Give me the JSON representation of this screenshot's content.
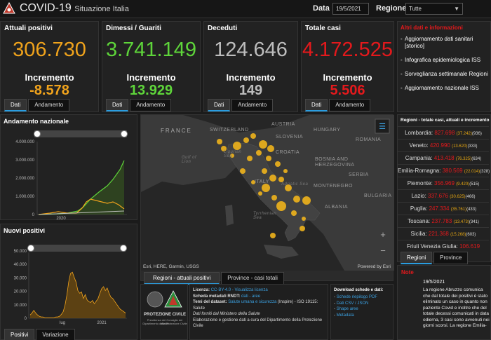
{
  "header": {
    "title": "COVID-19",
    "subtitle": "Situazione Italia",
    "date_label": "Data",
    "date_value": "19/5/2021",
    "region_label": "Regione",
    "region_value": "Tutte"
  },
  "stats": [
    {
      "title": "Attuali positivi",
      "value": "306.730",
      "inc_label": "Incremento",
      "inc": "-8.578",
      "value_color": "#f0a31c",
      "inc_color": "#f0a31c",
      "tabs": [
        "Dati",
        "Andamento"
      ]
    },
    {
      "title": "Dimessi / Guariti",
      "value": "3.741.149",
      "inc_label": "Incremento",
      "inc": "13.929",
      "value_color": "#5ed53a",
      "inc_color": "#5ed53a",
      "tabs": [
        "Dati",
        "Andamento"
      ]
    },
    {
      "title": "Deceduti",
      "value": "124.646",
      "inc_label": "Incremento",
      "inc": "149",
      "value_color": "#bdbdbd",
      "inc_color": "#bdbdbd",
      "tabs": [
        "Dati",
        "Andamento"
      ]
    },
    {
      "title": "Totale casi",
      "value": "4.172.525",
      "inc_label": "Incremento",
      "inc": "5.506",
      "value_color": "#e4191c",
      "inc_color": "#e4191c",
      "tabs": [
        "Dati",
        "Andamento"
      ]
    }
  ],
  "links": {
    "title": "Altri dati e informazioni",
    "items": [
      "Aggiornamento dati sanitari [storico]",
      "Infografica epidemiologica ISS",
      "Sorveglianza settimanale Regioni",
      "Aggiornamento nazionale ISS"
    ]
  },
  "andamento": {
    "title": "Andamento nazionale",
    "yticks": [
      "4.000.000",
      "3.000.000",
      "2.000.000",
      "1.000.000",
      "0"
    ],
    "xtick": "2020"
  },
  "positivi": {
    "title": "Nuovi positivi",
    "yticks": [
      "50.000",
      "40.000",
      "30.000",
      "20.000",
      "10.000",
      "0"
    ],
    "xticks": [
      "lug",
      "2021"
    ],
    "tabs": [
      "Positivi",
      "Variazione"
    ]
  },
  "map": {
    "labels": [
      "FRANCE",
      "SWITZERLAND",
      "AUSTRIA",
      "HUNGARY",
      "SLOVENIA",
      "CROATIA",
      "ROMANIA",
      "BOSNIA AND HERZEGOVINA",
      "SERBIA",
      "MONTENEGRO",
      "BULGARIA",
      "ALBANIA",
      "ITALY"
    ],
    "seas": [
      "Gulf of Lion",
      "Ligurian Sea",
      "Tyrrhenian Sea",
      "Adriatic Sea"
    ],
    "attribution": "Esri, HERE, Garmin, USGS",
    "powered": "Powered by Esri",
    "tabs": [
      "Regioni - attuali positivi",
      "Province - casi totali"
    ]
  },
  "regions_panel": {
    "title": "Regioni - totale casi, attuali e incremento",
    "tabs": [
      "Regioni",
      "Province"
    ],
    "rows": [
      {
        "name": "Lombardia:",
        "total": "827.698",
        "current": "(37.242)",
        "inc": "(936)"
      },
      {
        "name": "Veneto:",
        "total": "420.990",
        "current": "(13.620)",
        "inc": "(333)"
      },
      {
        "name": "Campania:",
        "total": "413.418",
        "current": "(76.325)",
        "inc": "(634)"
      },
      {
        "name": "Emilia-Romagna:",
        "total": "380.569",
        "current": "(22.014)",
        "inc": "(328)"
      },
      {
        "name": "Piemonte:",
        "total": "356.969",
        "current": "(9.420)",
        "inc": "(515)"
      },
      {
        "name": "Lazio:",
        "total": "337.676",
        "current": "(30.625)",
        "inc": "(466)"
      },
      {
        "name": "Puglia:",
        "total": "247.334",
        "current": "(35.761)",
        "inc": "(433)"
      },
      {
        "name": "Toscana:",
        "total": "237.783",
        "current": "(13.473)",
        "inc": "(341)"
      },
      {
        "name": "Sicilia:",
        "total": "221.368",
        "current": "(15.268)",
        "inc": "(603)"
      },
      {
        "name": "Friuli Venezia Giulia:",
        "total": "106.619",
        "current": "",
        "inc": ""
      }
    ]
  },
  "footer": {
    "protezione": "PROTEZIONE CIVILE",
    "protezione_sub1": "Presidenza del Consiglio dei Ministri",
    "protezione_sub2": "Dipartimento della Protezione Civile",
    "licenza_label": "Licenza:",
    "licenza_link": "CC-BY-4.0 - Visualizza licenza",
    "scheda_label": "Scheda metadati RNDT:",
    "scheda_link": "dati - aree",
    "temi_label": "Temi del dataset:",
    "temi_link": "Salute umana e sicurezza",
    "temi_rest": "(Inspire) - ISO 19115: Salute",
    "fonte": "Dati forniti dal Ministero della Salute",
    "elab": "Elaborazione e gestione dati a cura del Dipartimento della Protezione Civile",
    "download_title": "Download schede e dati:",
    "downloads": [
      "Schede riepilogo PDF",
      "Dati CSV / JSON",
      "Shape aree",
      "Metadata"
    ]
  },
  "note": {
    "title": "Note",
    "date": "19/5/2021",
    "text": "La regione Abruzzo comunica che dal totale dei positivi è stato eliminato un caso in quanto non paziente Covid e inoltre che del totale decessi comunicati in data odierna, 3 casi sono avvenuti nei giorni scorsi. La regione Emilia-"
  },
  "colors": {
    "accent": "#2a9de0",
    "orange": "#f0a31c",
    "green": "#5ed53a",
    "red": "#e4191c",
    "map_dot": "#f0b41c"
  }
}
